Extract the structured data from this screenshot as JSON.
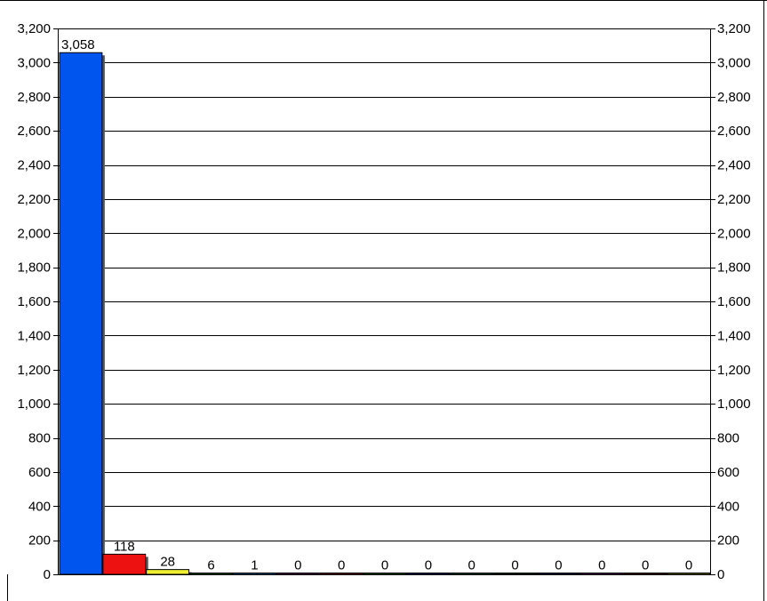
{
  "chart_data": {
    "type": "bar",
    "categories": [
      "",
      "",
      "",
      "",
      "",
      "",
      "",
      "",
      "",
      "",
      "",
      "",
      "",
      "",
      ""
    ],
    "values": [
      3058,
      118,
      28,
      6,
      1,
      0,
      0,
      0,
      0,
      0,
      0,
      0,
      0,
      0,
      0
    ],
    "data_labels": [
      "3,058",
      "118",
      "28",
      "6",
      "1",
      "0",
      "0",
      "0",
      "0",
      "0",
      "0",
      "0",
      "0",
      "0",
      "0"
    ],
    "bar_colors": [
      "#0055ee",
      "#ee1111",
      "#eeee33",
      "#117711",
      "#3377bb",
      "#773377",
      "#aa2222",
      "#117711",
      "#222288",
      "#116655",
      "#114411",
      "#111155",
      "#771177",
      "#661122",
      "#999922"
    ],
    "ylim": [
      0,
      3200
    ],
    "yticks": [
      0,
      200,
      400,
      600,
      800,
      1000,
      1200,
      1400,
      1600,
      1800,
      2000,
      2200,
      2400,
      2600,
      2800,
      3000,
      3200
    ],
    "ytick_labels": [
      "0",
      "200",
      "400",
      "600",
      "800",
      "1,000",
      "1,200",
      "1,400",
      "1,600",
      "1,800",
      "2,000",
      "2,200",
      "2,400",
      "2,600",
      "2,800",
      "3,000",
      "3,200"
    ],
    "secondary_y_axis": true,
    "grid": true,
    "title": "",
    "xlabel": "",
    "ylabel": ""
  }
}
